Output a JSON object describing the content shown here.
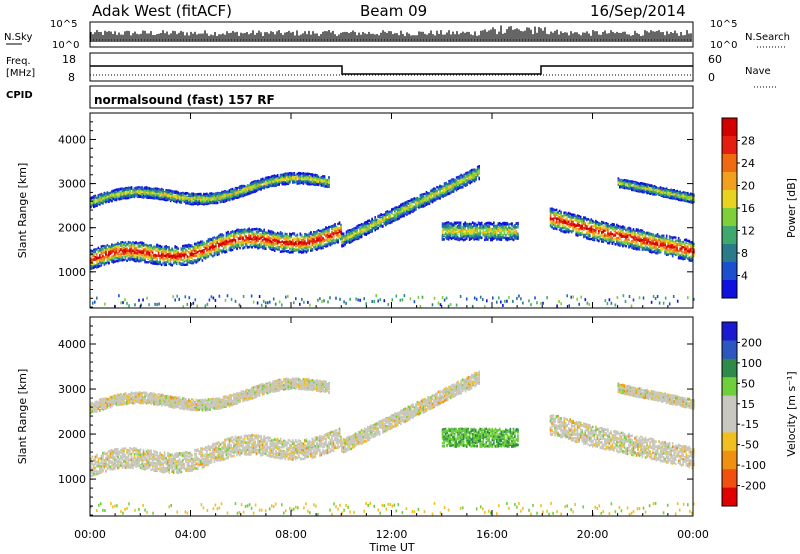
{
  "header": {
    "radar_title": "Adak West (fitACF)",
    "beam": "Beam 09",
    "date": "16/Sep/2014"
  },
  "noise_panel": {
    "left_label": "N.Sky",
    "right_label": "N.Search",
    "left_ticks": [
      "10^5",
      "10^0"
    ],
    "right_ticks": [
      "10^5",
      "10^0"
    ]
  },
  "freq_panel": {
    "left_label_1": "Freq.",
    "left_label_2": "[MHz]",
    "right_label": "Nave",
    "left_ticks": [
      "18",
      "8"
    ],
    "right_ticks": [
      "60",
      "0"
    ],
    "cpid_label": "CPID",
    "cpid_text": "normalsound (fast) 157 RF"
  },
  "chart_data": [
    {
      "type": "heatmap",
      "name": "Power",
      "ylabel": "Slant Range [km]",
      "xlabel": "Time UT",
      "ylim": [
        180,
        4600
      ],
      "yticks": [
        "1000",
        "2000",
        "3000",
        "4000"
      ],
      "xticks": [
        "00:00",
        "04:00",
        "08:00",
        "12:00",
        "16:00",
        "20:00",
        "00:00"
      ],
      "colorbar": {
        "label": "Power [dB]",
        "ticks": [
          "4",
          "8",
          "12",
          "16",
          "20",
          "24",
          "28"
        ],
        "colors": [
          "#1010e0",
          "#1a4fd0",
          "#2a7a8a",
          "#3ea86e",
          "#7fcf3a",
          "#e8d420",
          "#f2a020",
          "#f06a10",
          "#e51e10",
          "#d40000"
        ]
      }
    },
    {
      "type": "heatmap",
      "name": "Velocity",
      "ylabel": "Slant Range [km]",
      "xlabel": "Time UT",
      "ylim": [
        180,
        4600
      ],
      "yticks": [
        "1000",
        "2000",
        "3000",
        "4000"
      ],
      "xticks": [
        "00:00",
        "04:00",
        "08:00",
        "12:00",
        "16:00",
        "20:00",
        "00:00"
      ],
      "colorbar": {
        "label": "Velocity [m s⁻¹]",
        "ticks": [
          "200",
          "100",
          "50",
          "15",
          "-15",
          "-50",
          "-100",
          "-200"
        ],
        "colors": [
          "#1a1ad0",
          "#2a58c0",
          "#2f8a4a",
          "#6fcf3a",
          "#c8c8c0",
          "#c8c8c0",
          "#f0c020",
          "#f09010",
          "#f05010",
          "#e00000"
        ]
      }
    }
  ],
  "x_axis_title": "Time UT"
}
